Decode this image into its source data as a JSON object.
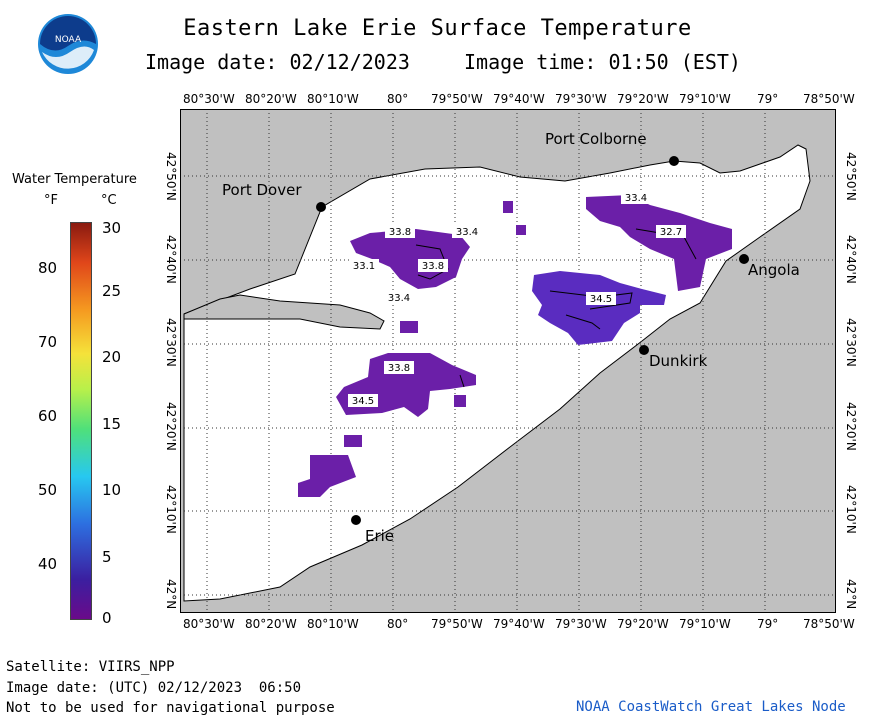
{
  "header": {
    "title": "Eastern Lake Erie Surface Temperature",
    "image_date": "Image date: 02/12/2023",
    "image_time": "Image time: 01:50 (EST)",
    "logo_text": "NOAA"
  },
  "legend": {
    "title": "Water Temperature",
    "unit_f": "°F",
    "unit_c": "°C",
    "fahrenheit_ticks": [
      "80",
      "70",
      "60",
      "50",
      "40"
    ],
    "celsius_ticks": [
      "30",
      "25",
      "20",
      "15",
      "10",
      "5",
      "0"
    ]
  },
  "map": {
    "longitude_labels": [
      "80°30'W",
      "80°20'W",
      "80°10'W",
      "80°",
      "79°50'W",
      "79°40'W",
      "79°30'W",
      "79°20'W",
      "79°10'W",
      "79°",
      "78°50'W"
    ],
    "latitude_labels": [
      "42°50'N",
      "42°40'N",
      "42°30'N",
      "42°20'N",
      "42°10'N",
      "42°N"
    ],
    "cities": [
      {
        "name": "Port Colborne"
      },
      {
        "name": "Port Dover"
      },
      {
        "name": "Angola"
      },
      {
        "name": "Dunkirk"
      },
      {
        "name": "Erie"
      }
    ],
    "temperature_labels": [
      "33.8",
      "33.4",
      "33.1",
      "33.8",
      "33.4",
      "33.4",
      "32.7",
      "34.5",
      "33.8",
      "34.5"
    ],
    "colors": {
      "land": "#c0c0c0",
      "water": "#ffffff",
      "warm_patch": "#6b1fa8",
      "cool_patch": "#5a2cc0"
    }
  },
  "footer": {
    "satellite": "Satellite: VIIRS_NPP",
    "image_date_utc": "Image date: (UTC) 02/12/2023  06:50",
    "disclaimer": "Not to be used for navigational purpose",
    "credit": "NOAA CoastWatch Great Lakes Node"
  }
}
